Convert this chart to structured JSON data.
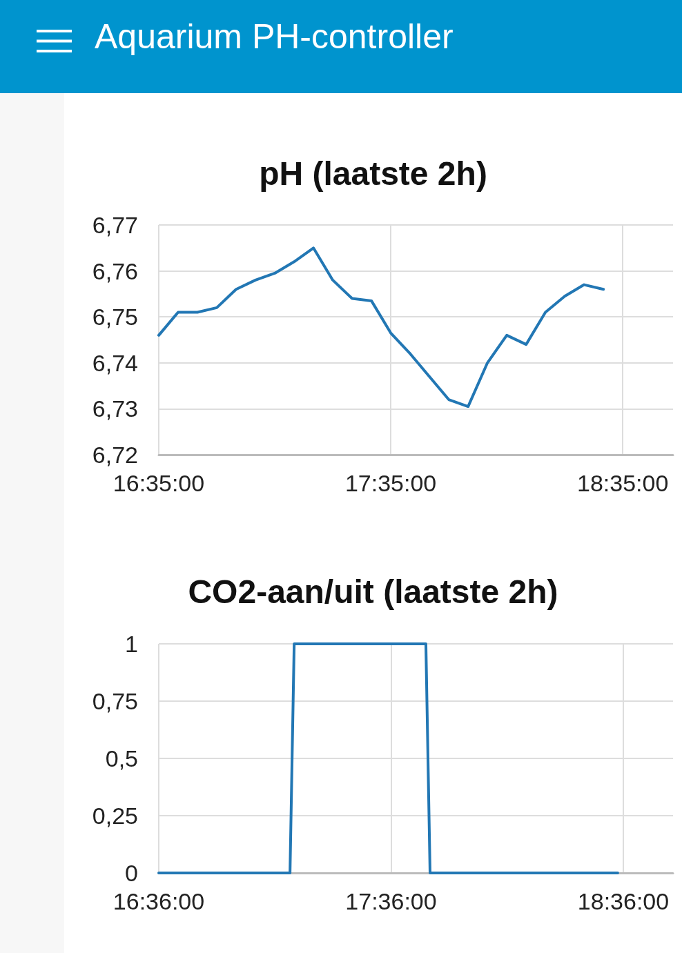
{
  "chart_data": [
    {
      "type": "line",
      "title": "pH (laatste 2h)",
      "annotations": [
        "Aquarium PH-controller"
      ],
      "x": [
        16.5833,
        16.6667,
        16.75,
        16.8333,
        16.9167,
        17,
        17.0833,
        17.1667,
        17.25,
        17.3333,
        17.4167,
        17.5,
        17.5833,
        17.6667,
        17.75,
        17.8333,
        17.9167,
        18,
        18.0833,
        18.1667,
        18.25,
        18.3333,
        18.4167,
        18.5
      ],
      "series": [
        {
          "color": "#2277b4",
          "values": [
            6.746,
            6.751,
            6.751,
            6.752,
            6.756,
            6.758,
            6.7595,
            6.762,
            6.765,
            6.758,
            6.754,
            6.7535,
            6.7465,
            6.742,
            6.737,
            6.732,
            6.7305,
            6.74,
            6.746,
            6.744,
            6.751,
            6.7545,
            6.757,
            6.756
          ]
        }
      ],
      "xlim": [
        16.5833,
        18.8
      ],
      "xticks": [
        {
          "value": 16.5833,
          "label": "16:35:00"
        },
        {
          "value": 17.5833,
          "label": "17:35:00"
        },
        {
          "value": 18.5833,
          "label": "18:35:00"
        }
      ],
      "ylim": [
        6.72,
        6.77
      ],
      "yticks": [
        {
          "value": 6.72,
          "label": "6,72"
        },
        {
          "value": 6.73,
          "label": "6,73"
        },
        {
          "value": 6.74,
          "label": "6,74"
        },
        {
          "value": 6.75,
          "label": "6,75"
        },
        {
          "value": 6.76,
          "label": "6,76"
        },
        {
          "value": 6.77,
          "label": "6,77"
        }
      ],
      "grid": true,
      "marker": "none",
      "line_style": "solid"
    },
    {
      "type": "line",
      "title": "CO2-aan/uit (laatste 2h)",
      "x": [
        16.6,
        17.165,
        17.183,
        17.75,
        17.768,
        18.576
      ],
      "series": [
        {
          "color": "#2277b4",
          "values": [
            0,
            0,
            1,
            1,
            0,
            0
          ]
        }
      ],
      "xlim": [
        16.6,
        18.814
      ],
      "xticks": [
        {
          "value": 16.6,
          "label": "16:36:00"
        },
        {
          "value": 17.6,
          "label": "17:36:00"
        },
        {
          "value": 18.6,
          "label": "18:36:00"
        }
      ],
      "ylim": [
        0,
        1
      ],
      "yticks": [
        0,
        {
          "value": 0.25,
          "label": "0,25"
        },
        {
          "value": 0.5,
          "label": "0,5"
        },
        {
          "value": 0.75,
          "label": "0,75"
        },
        1
      ],
      "grid": true,
      "marker": "none",
      "line_style": "solid"
    }
  ]
}
